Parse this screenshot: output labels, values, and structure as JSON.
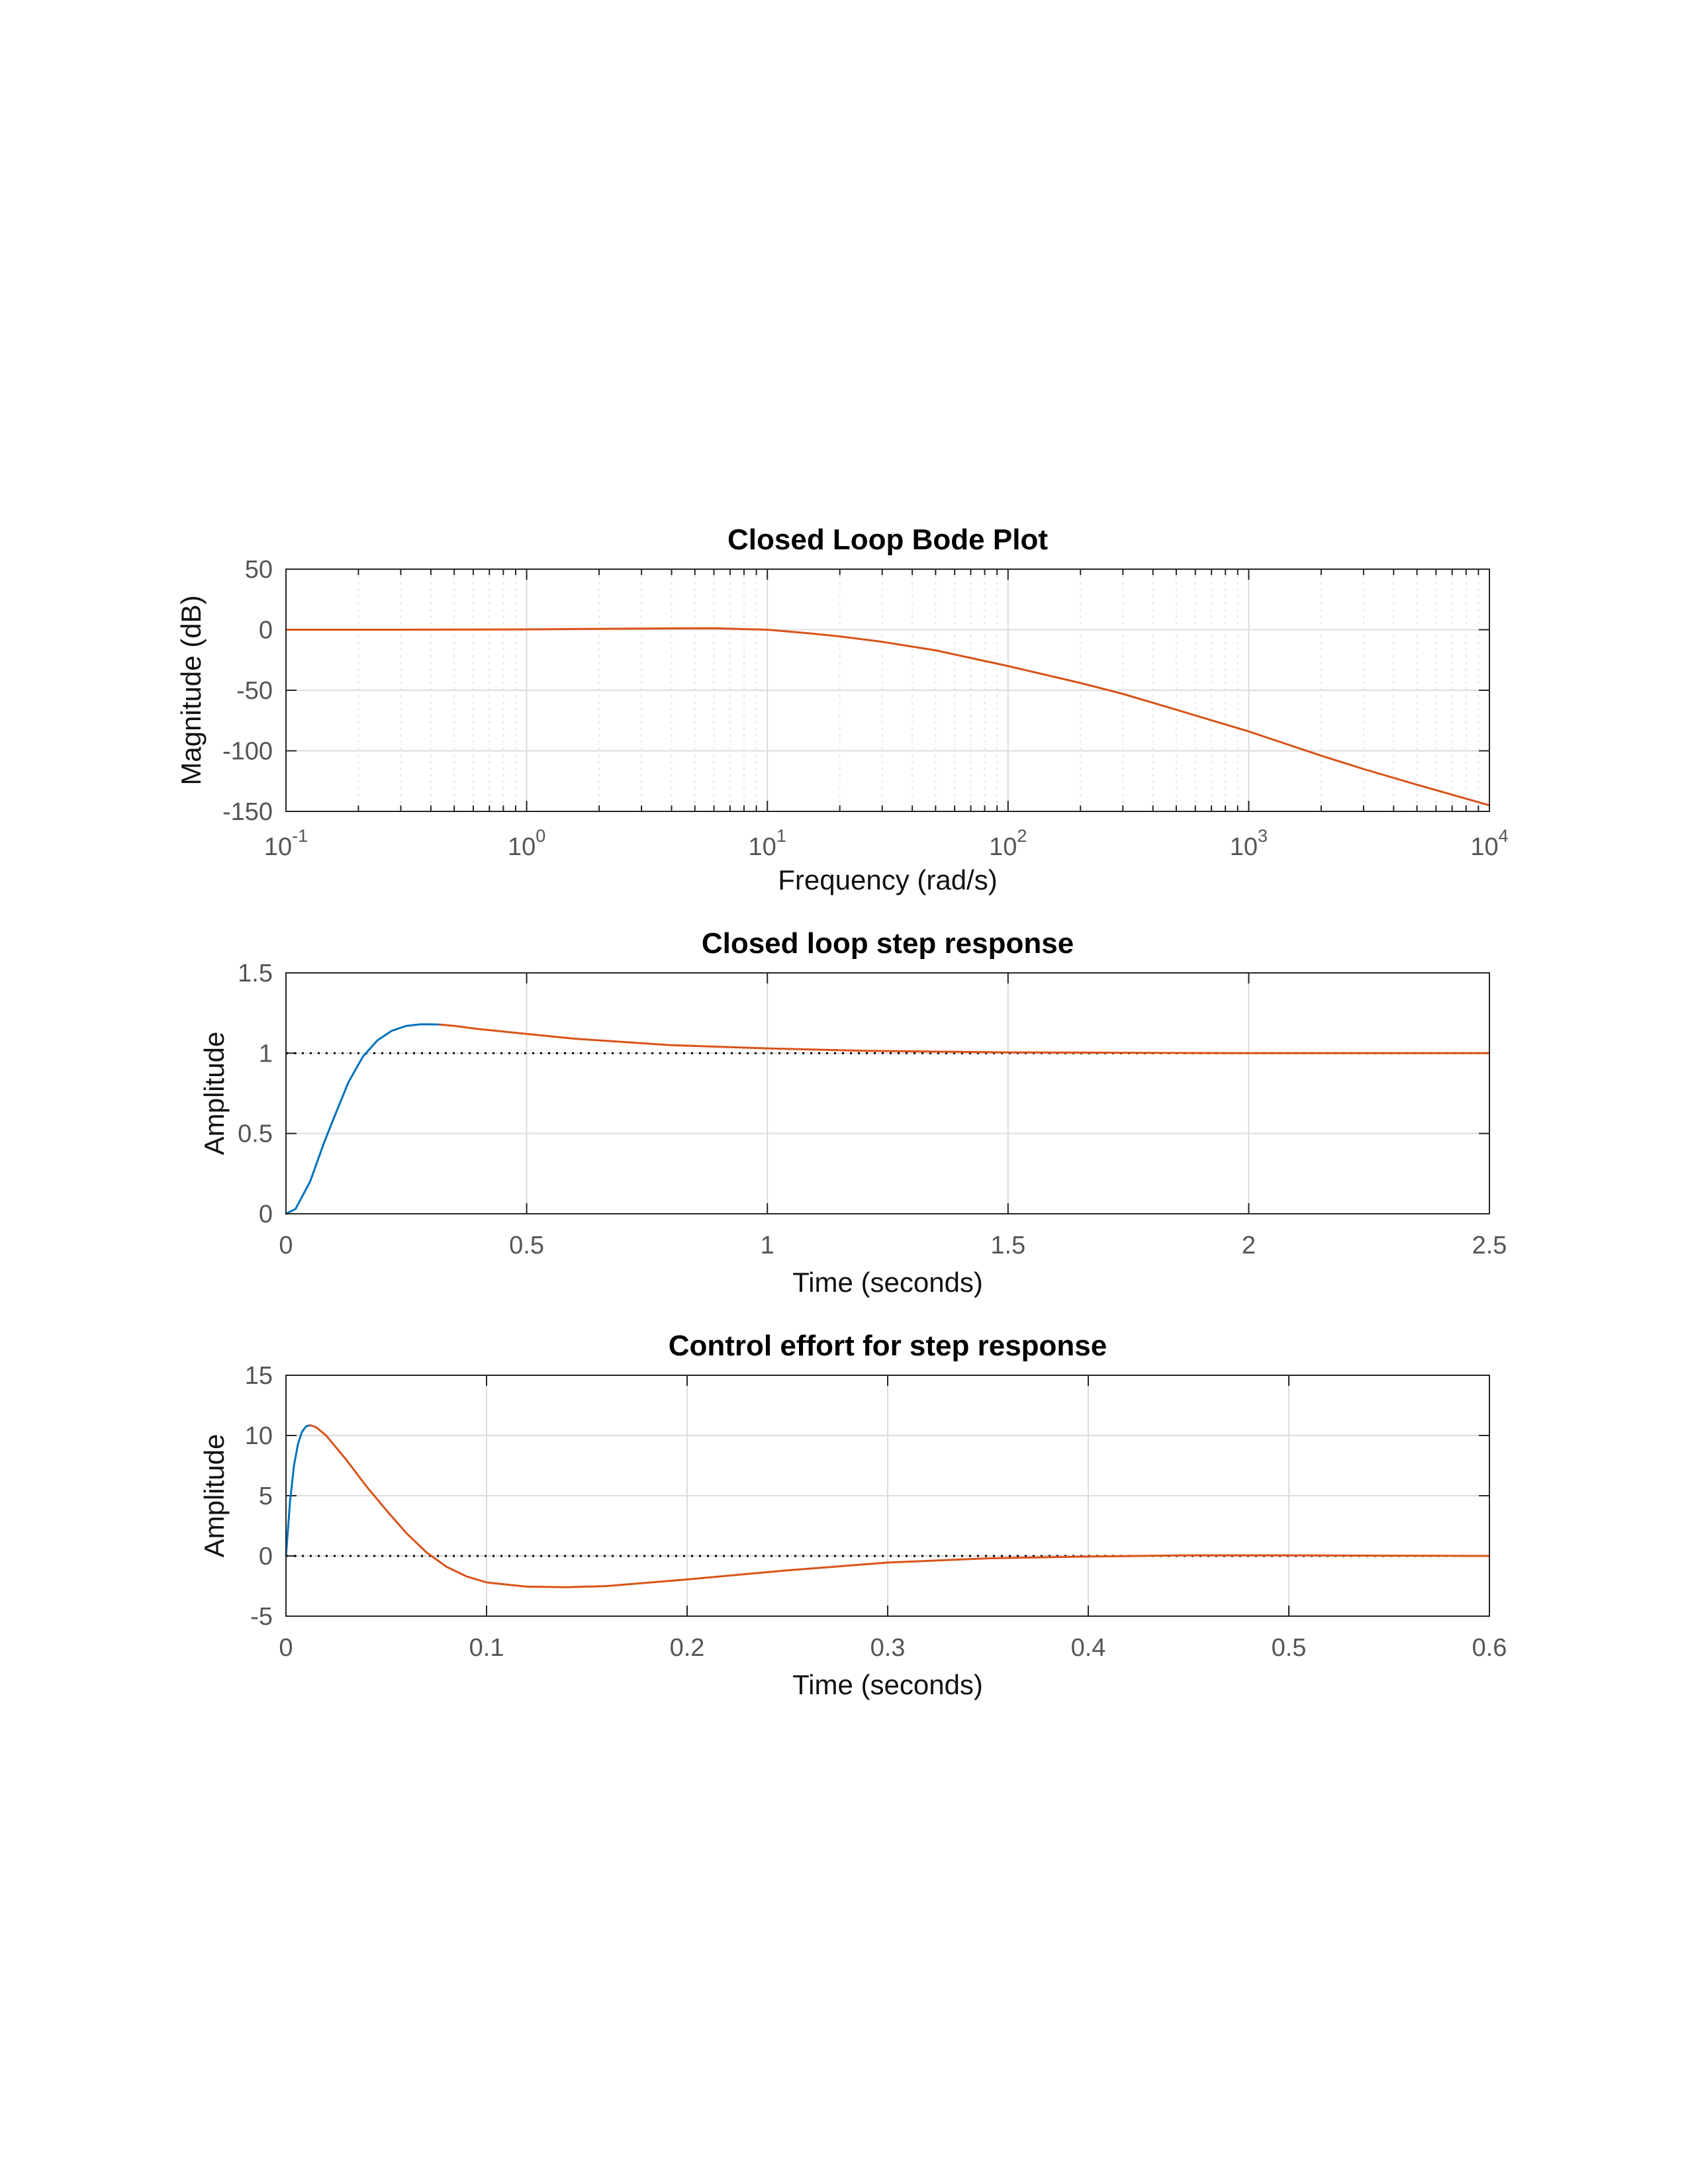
{
  "chart_data": [
    {
      "type": "line",
      "title": "Closed Loop Bode Plot",
      "xlabel": "Frequency  (rad/s)",
      "ylabel": "Magnitude (dB)",
      "xscale": "log",
      "xlim": [
        0.1,
        10000
      ],
      "ylim": [
        -150,
        50
      ],
      "xticks": [
        0.1,
        1,
        10,
        100,
        1000,
        10000
      ],
      "xtick_labels": [
        {
          "base": "10",
          "exp": "-1"
        },
        {
          "base": "10",
          "exp": "0"
        },
        {
          "base": "10",
          "exp": "1"
        },
        {
          "base": "10",
          "exp": "2"
        },
        {
          "base": "10",
          "exp": "3"
        },
        {
          "base": "10",
          "exp": "4"
        }
      ],
      "yticks": [
        50,
        0,
        -50,
        -100,
        -150
      ],
      "ytick_labels": [
        "50",
        "0",
        "-50",
        "-100",
        "-150"
      ],
      "grid": true,
      "minor_grid": true,
      "series": [
        {
          "color": "#d95319",
          "x": [
            0.1,
            0.3,
            1,
            3,
            6,
            10,
            15,
            20,
            30,
            50,
            100,
            200,
            300,
            500,
            1000,
            2000,
            3000,
            5000,
            10000
          ],
          "y": [
            0,
            0,
            0.3,
            1.0,
            1.2,
            0,
            -3,
            -5.5,
            -10,
            -17,
            -30,
            -44,
            -53,
            -66,
            -84,
            -104,
            -115,
            -128,
            -145
          ]
        }
      ]
    },
    {
      "type": "line",
      "title": "Closed loop step response",
      "xlabel": "Time (seconds)",
      "ylabel": "Amplitude",
      "xlim": [
        0,
        2.5
      ],
      "ylim": [
        0,
        1.5
      ],
      "xticks": [
        0,
        0.5,
        1,
        1.5,
        2,
        2.5
      ],
      "xtick_labels": [
        "0",
        "0.5",
        "1",
        "1.5",
        "2",
        "2.5"
      ],
      "yticks": [
        1.5,
        1,
        0.5,
        0
      ],
      "ytick_labels": [
        "1.5",
        "1",
        "0.5",
        "0"
      ],
      "grid": true,
      "reference_line": 1,
      "series": [
        {
          "color": "#0072bd",
          "x": [
            0,
            0.02,
            0.05,
            0.08,
            0.1,
            0.13,
            0.16,
            0.19,
            0.22,
            0.25,
            0.28,
            0.3,
            0.32
          ],
          "y": [
            0,
            0.03,
            0.2,
            0.45,
            0.6,
            0.82,
            0.98,
            1.08,
            1.14,
            1.17,
            1.18,
            1.18,
            1.178
          ]
        },
        {
          "color": "#d95319",
          "x": [
            0.32,
            0.35,
            0.4,
            0.5,
            0.6,
            0.8,
            1.0,
            1.2,
            1.5,
            2.0,
            2.5
          ],
          "y": [
            1.178,
            1.17,
            1.15,
            1.12,
            1.09,
            1.05,
            1.03,
            1.015,
            1.005,
            1.0,
            1.0
          ]
        }
      ]
    },
    {
      "type": "line",
      "title": "Control effort for step response",
      "xlabel": "Time (seconds)",
      "ylabel": "Amplitude",
      "xlim": [
        0,
        0.6
      ],
      "ylim": [
        -5,
        15
      ],
      "xticks": [
        0,
        0.1,
        0.2,
        0.3,
        0.4,
        0.5,
        0.6
      ],
      "xtick_labels": [
        "0",
        "0.1",
        "0.2",
        "0.3",
        "0.4",
        "0.5",
        "0.6"
      ],
      "yticks": [
        15,
        10,
        5,
        0,
        -5
      ],
      "ytick_labels": [
        "15",
        "10",
        "5",
        "0",
        "-5"
      ],
      "grid": true,
      "reference_line": 0,
      "series": [
        {
          "color": "#0072bd",
          "x": [
            0,
            0.002,
            0.004,
            0.006,
            0.008,
            0.01,
            0.012
          ],
          "y": [
            0,
            4.5,
            7.5,
            9.3,
            10.3,
            10.75,
            10.85
          ]
        },
        {
          "color": "#d95319",
          "x": [
            0.012,
            0.015,
            0.02,
            0.03,
            0.04,
            0.05,
            0.06,
            0.07,
            0.08,
            0.09,
            0.1,
            0.12,
            0.14,
            0.16,
            0.2,
            0.25,
            0.3,
            0.35,
            0.4,
            0.45,
            0.5,
            0.55,
            0.6
          ],
          "y": [
            10.85,
            10.7,
            10.0,
            8.0,
            5.8,
            3.8,
            1.9,
            0.3,
            -0.9,
            -1.7,
            -2.2,
            -2.55,
            -2.6,
            -2.5,
            -1.95,
            -1.2,
            -0.55,
            -0.2,
            -0.05,
            0.05,
            0.05,
            0.02,
            0
          ]
        }
      ]
    }
  ]
}
